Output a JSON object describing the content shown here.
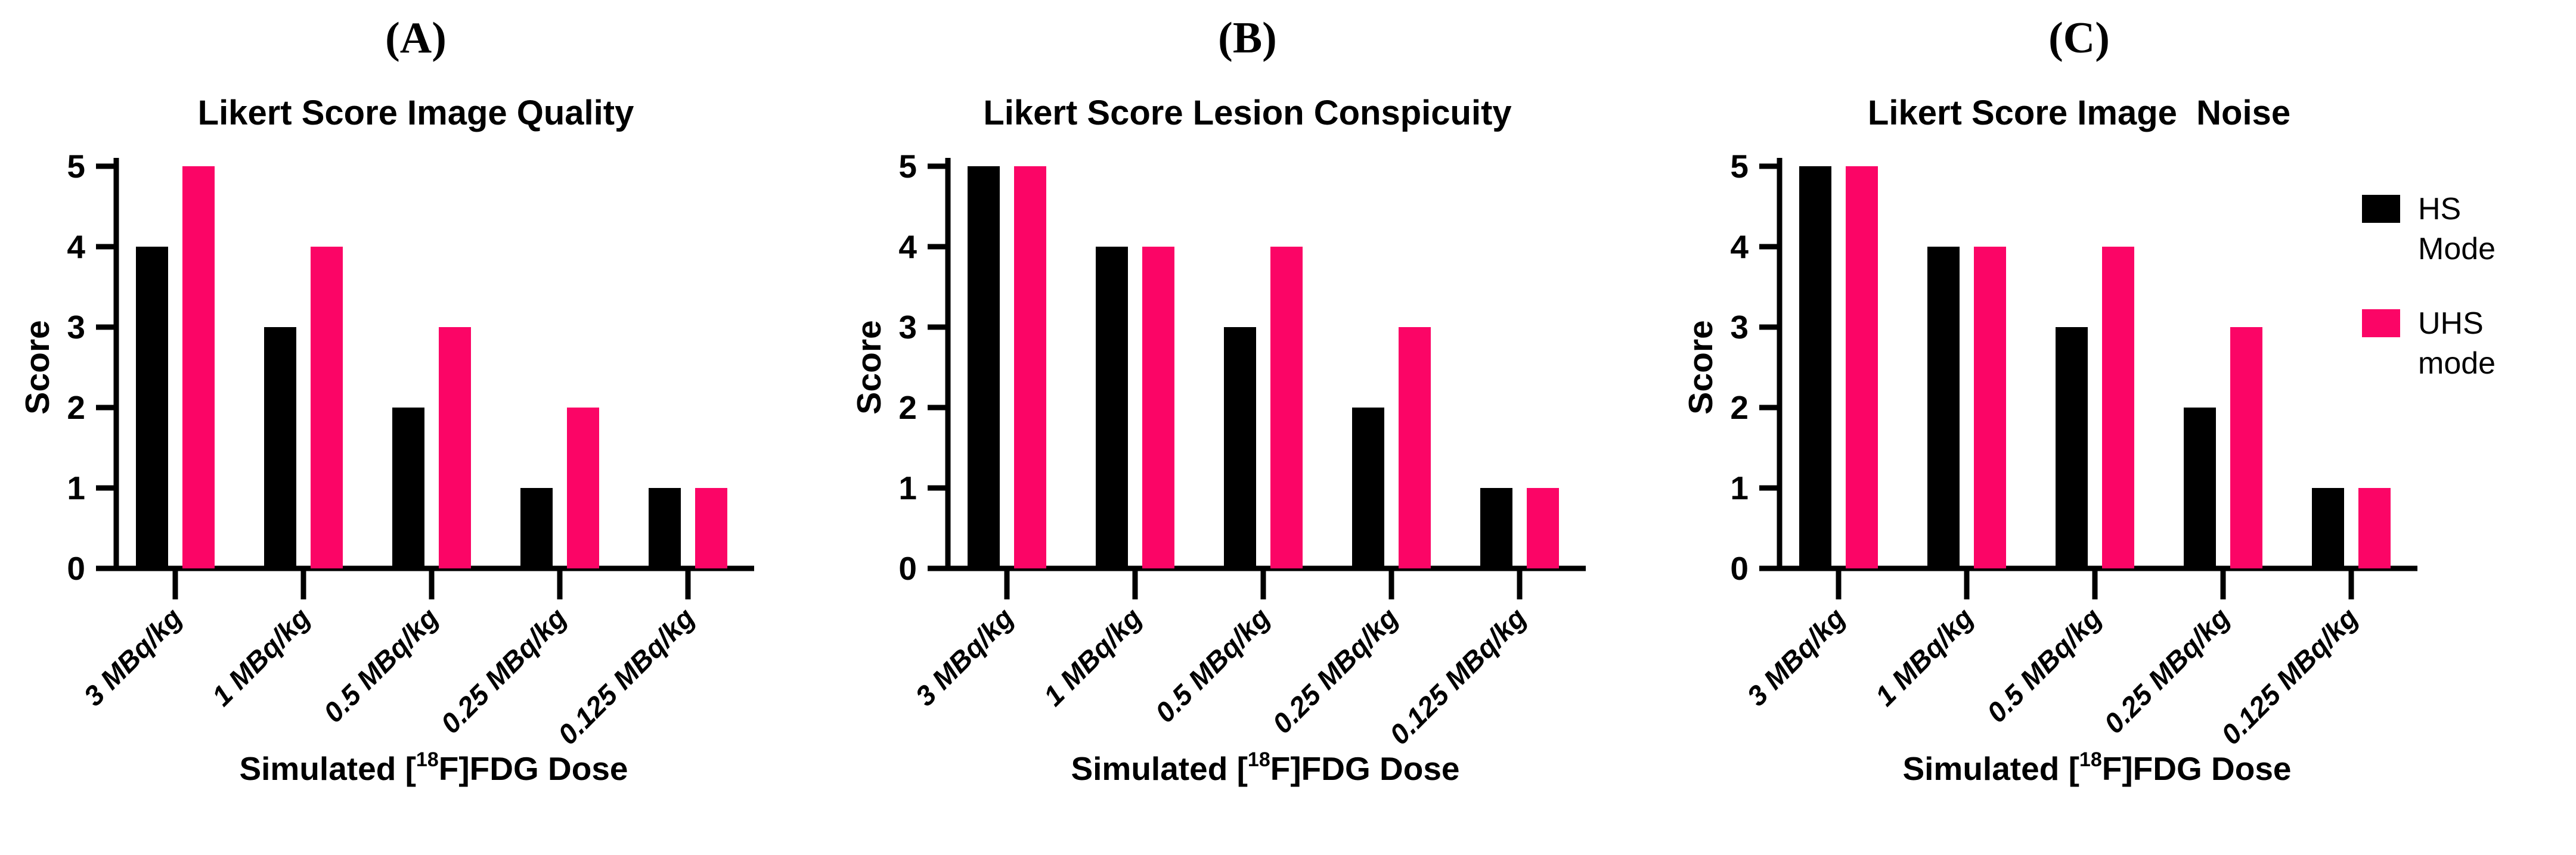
{
  "figure": {
    "panels": [
      {
        "label": "(A)"
      },
      {
        "label": "(B)"
      },
      {
        "label": "(C)"
      }
    ],
    "legend": {
      "items": [
        {
          "line1": "HS",
          "line2": "Mode",
          "color": "#000000"
        },
        {
          "line1": "UHS",
          "line2": "mode",
          "color": "#FB0566"
        }
      ]
    },
    "colors": {
      "hs": "#000000",
      "uhs": "#FB0566",
      "axis": "#000000",
      "background": "#ffffff"
    }
  },
  "chart_data": [
    {
      "type": "bar",
      "title": "Likert Score Image Quality",
      "categories": [
        "3 MBq/kg",
        "1 MBq/kg",
        "0.5 MBq/kg",
        "0.25 MBq/kg",
        "0.125 MBq/kg"
      ],
      "series": [
        {
          "name": "HS Mode",
          "color": "#000000",
          "values": [
            4,
            3,
            2,
            1,
            1
          ]
        },
        {
          "name": "UHS mode",
          "color": "#FB0566",
          "values": [
            5,
            4,
            3,
            2,
            1
          ]
        }
      ],
      "ylabel": "Score",
      "xlabel": "Simulated [18F]FDG Dose",
      "xlabel_parts": {
        "pre": "Simulated [",
        "sup": "18",
        "post": "F]FDG Dose"
      },
      "ylim": [
        0,
        5
      ],
      "yticks": [
        0,
        1,
        2,
        3,
        4,
        5
      ],
      "grid": false,
      "legend_position": "right-of-figure"
    },
    {
      "type": "bar",
      "title": "Likert Score Lesion Conspicuity",
      "categories": [
        "3 MBq/kg",
        "1 MBq/kg",
        "0.5 MBq/kg",
        "0.25 MBq/kg",
        "0.125 MBq/kg"
      ],
      "series": [
        {
          "name": "HS Mode",
          "color": "#000000",
          "values": [
            5,
            4,
            3,
            2,
            1
          ]
        },
        {
          "name": "UHS mode",
          "color": "#FB0566",
          "values": [
            5,
            4,
            4,
            3,
            1
          ]
        }
      ],
      "ylabel": "Score",
      "xlabel": "Simulated [18F]FDG Dose",
      "xlabel_parts": {
        "pre": "Simulated [",
        "sup": "18",
        "post": "F]FDG Dose"
      },
      "ylim": [
        0,
        5
      ],
      "yticks": [
        0,
        1,
        2,
        3,
        4,
        5
      ],
      "grid": false,
      "legend_position": "right-of-figure"
    },
    {
      "type": "bar",
      "title": "Likert Score Image  Noise",
      "categories": [
        "3 MBq/kg",
        "1 MBq/kg",
        "0.5 MBq/kg",
        "0.25 MBq/kg",
        "0.125 MBq/kg"
      ],
      "series": [
        {
          "name": "HS Mode",
          "color": "#000000",
          "values": [
            5,
            4,
            3,
            2,
            1
          ]
        },
        {
          "name": "UHS mode",
          "color": "#FB0566",
          "values": [
            5,
            4,
            4,
            3,
            1
          ]
        }
      ],
      "ylabel": "Score",
      "xlabel": "Simulated [18F]FDG Dose",
      "xlabel_parts": {
        "pre": "Simulated [",
        "sup": "18",
        "post": "F]FDG Dose"
      },
      "ylim": [
        0,
        5
      ],
      "yticks": [
        0,
        1,
        2,
        3,
        4,
        5
      ],
      "grid": false,
      "legend_position": "right-of-figure"
    }
  ]
}
